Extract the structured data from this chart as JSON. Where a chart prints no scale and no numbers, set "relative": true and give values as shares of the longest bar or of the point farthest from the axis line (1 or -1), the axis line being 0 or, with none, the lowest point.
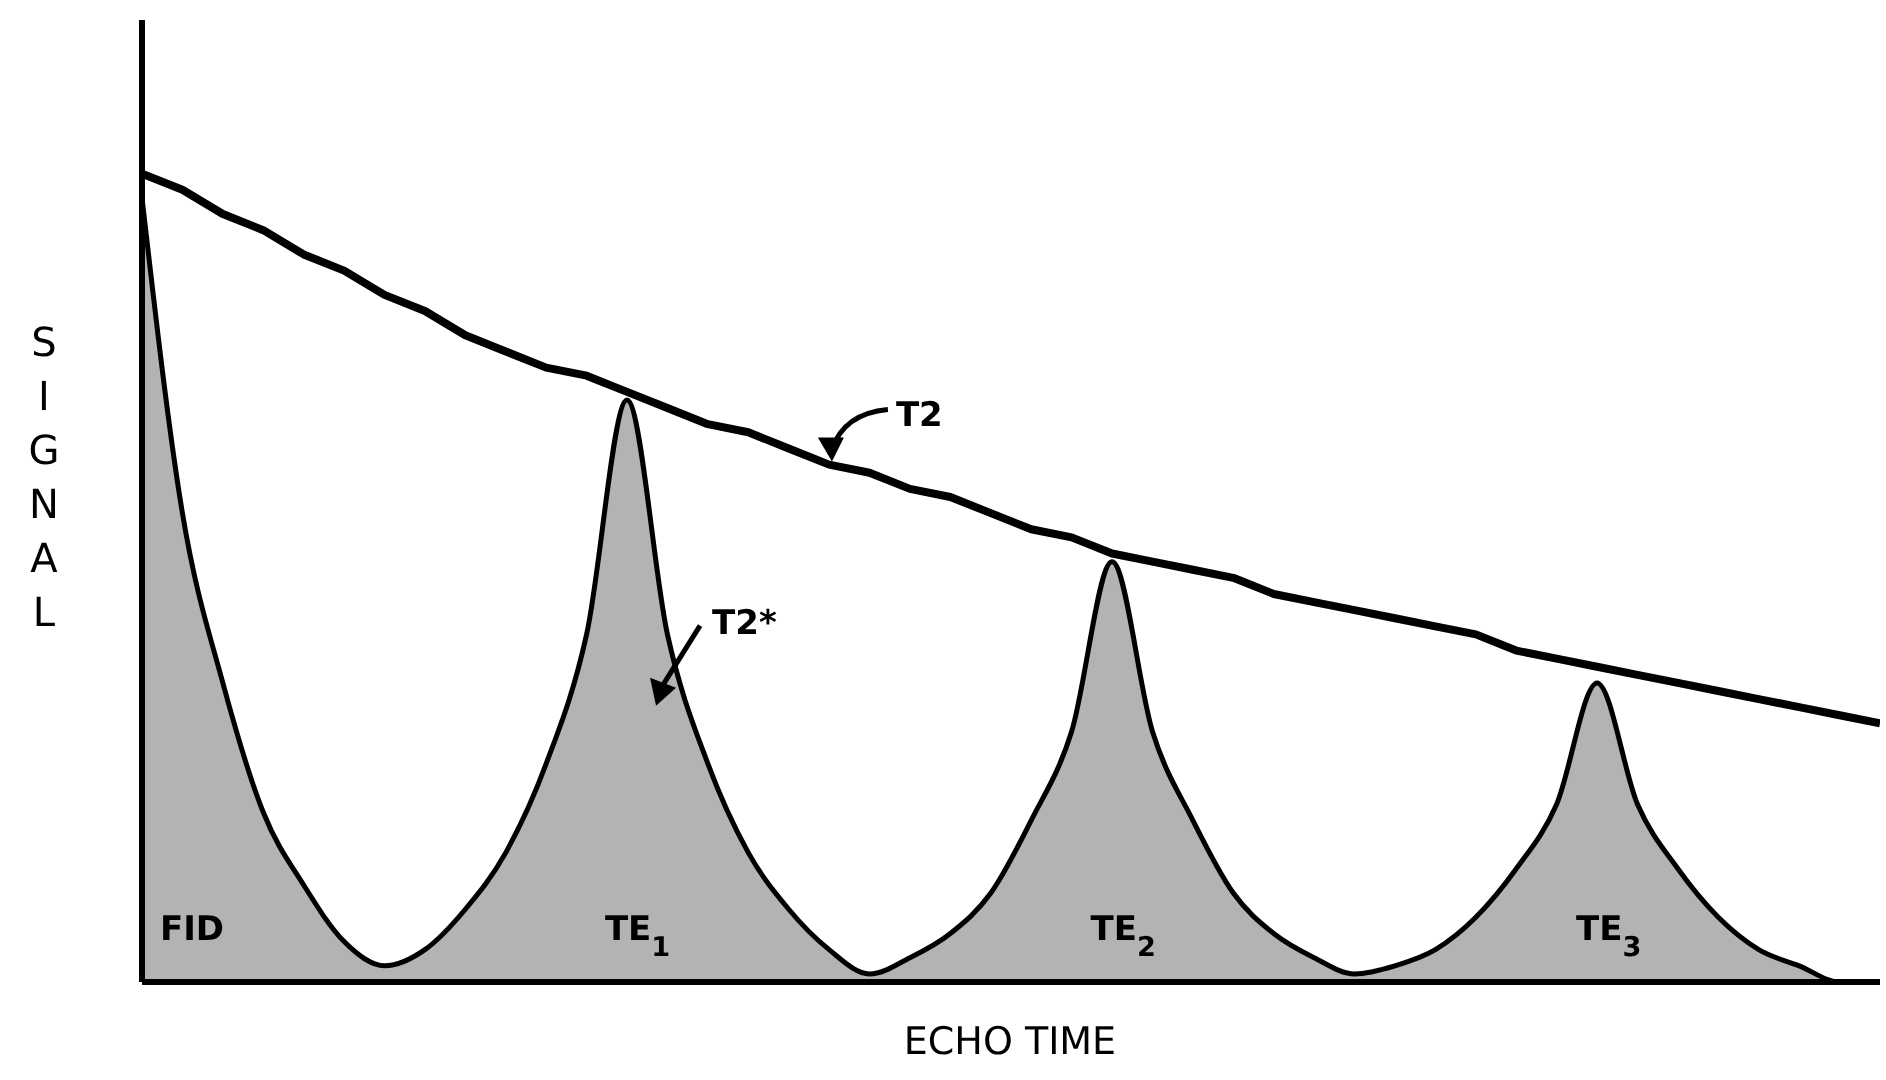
{
  "chart_data": {
    "type": "line",
    "relative": true,
    "xlabel": "ECHO TIME",
    "ylabel": "SIGNAL",
    "categories": [
      null,
      null,
      null,
      null,
      null,
      null,
      null,
      null,
      null,
      null,
      null,
      null,
      null,
      null,
      null,
      null,
      null,
      null,
      null,
      null,
      null,
      null,
      null,
      null,
      null,
      null,
      null,
      null,
      null,
      null,
      null,
      null,
      null,
      null,
      null,
      null,
      null,
      null,
      null,
      null,
      null,
      null,
      null,
      null
    ],
    "series": [
      {
        "name": "T2",
        "color": "#000000",
        "values": [
          1.0,
          0.98,
          0.95,
          0.93,
          0.9,
          0.88,
          0.85,
          0.83,
          0.8,
          0.78,
          0.76,
          0.75,
          0.73,
          0.71,
          0.69,
          0.68,
          0.66,
          0.64,
          0.63,
          0.61,
          0.6,
          0.58,
          0.56,
          0.55,
          0.53,
          0.52,
          0.51,
          0.5,
          0.48,
          0.47,
          0.46,
          0.45,
          0.44,
          0.43,
          0.41,
          0.4,
          0.39,
          0.38,
          0.37,
          0.36,
          0.35,
          0.34,
          0.33,
          0.32
        ]
      },
      {
        "name": "T2*",
        "type": "area",
        "color": "#b3b3b3",
        "values": [
          0.97,
          0.58,
          0.37,
          0.21,
          0.12,
          0.05,
          0.02,
          0.04,
          0.09,
          0.16,
          0.27,
          0.43,
          0.72,
          0.43,
          0.27,
          0.16,
          0.09,
          0.04,
          0.01,
          0.03,
          0.06,
          0.11,
          0.2,
          0.31,
          0.52,
          0.31,
          0.2,
          0.11,
          0.06,
          0.03,
          0.01,
          0.02,
          0.04,
          0.08,
          0.14,
          0.22,
          0.37,
          0.22,
          0.14,
          0.08,
          0.04,
          0.02,
          0,
          0
        ]
      }
    ],
    "annotations": [
      "FID",
      "TE$_{1}$",
      "TE$_{2}$",
      "TE$_{3}$"
    ],
    "marker": "none"
  }
}
